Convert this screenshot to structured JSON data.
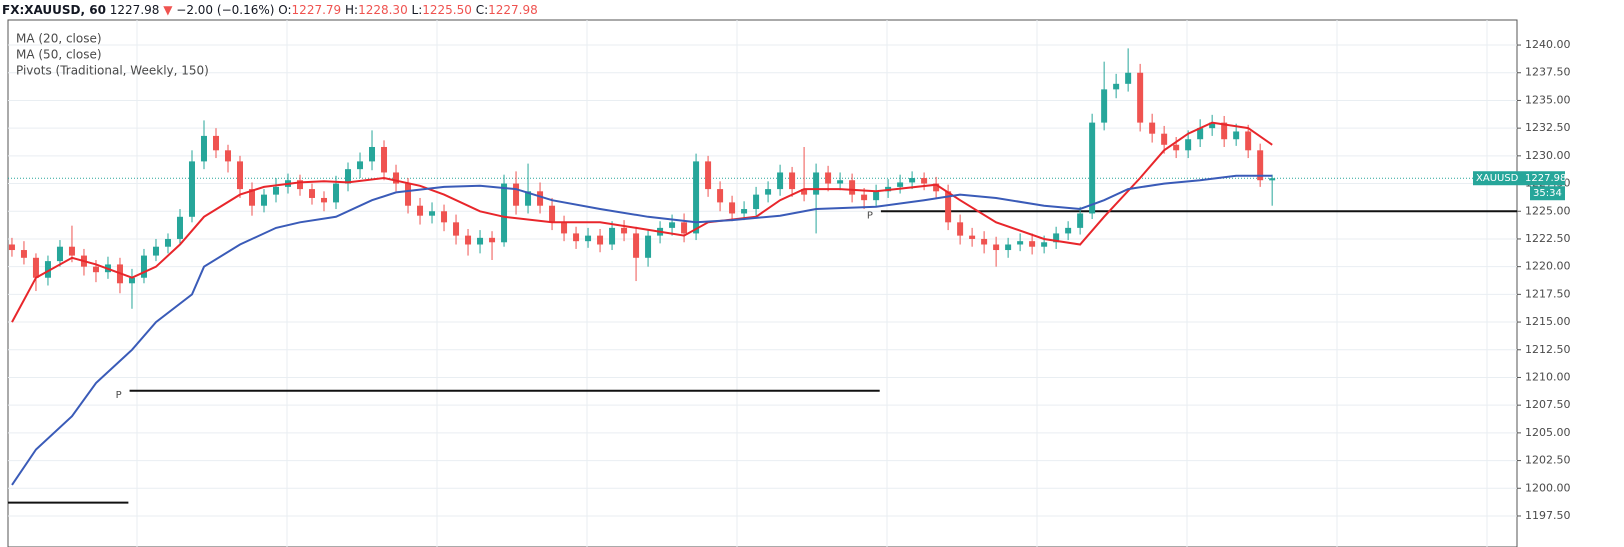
{
  "chart_data": {
    "type": "candlestick",
    "header": {
      "symbol": "FX:XAUUSD, 60",
      "last": "1227.98",
      "direction": "▼",
      "change": "−2.00 (−0.16%)",
      "ohlc": [
        {
          "key": "O:",
          "value": "1227.79"
        },
        {
          "key": "H:",
          "value": "1228.30"
        },
        {
          "key": "L:",
          "value": "1225.50"
        },
        {
          "key": "C:",
          "value": "1227.98"
        }
      ]
    },
    "up_color": "#26a69a",
    "down_color": "#ef5350",
    "xlim": [
      -0.33,
      125.4
    ],
    "ylim": [
      1194.7,
      1242.26
    ],
    "yticks": [
      {
        "value": 1197.5,
        "label": "1197.50"
      },
      {
        "value": 1200,
        "label": "1200.00"
      },
      {
        "value": 1202.5,
        "label": "1202.50"
      },
      {
        "value": 1205,
        "label": "1205.00"
      },
      {
        "value": 1207.5,
        "label": "1207.50"
      },
      {
        "value": 1210,
        "label": "1210.00"
      },
      {
        "value": 1212.5,
        "label": "1212.50"
      },
      {
        "value": 1215,
        "label": "1215.00"
      },
      {
        "value": 1217.5,
        "label": "1217.50"
      },
      {
        "value": 1220,
        "label": "1220.00"
      },
      {
        "value": 1222.5,
        "label": "1222.50"
      },
      {
        "value": 1225,
        "label": "1225.00"
      },
      {
        "value": 1227.5,
        "label": "1227.50"
      },
      {
        "value": 1230,
        "label": "1230.00"
      },
      {
        "value": 1232.5,
        "label": "1232.50"
      },
      {
        "value": 1235,
        "label": "1235.00"
      },
      {
        "value": 1237.5,
        "label": "1237.50"
      },
      {
        "value": 1240,
        "label": "1240.00"
      }
    ],
    "grid": true,
    "open": [
      1222.0,
      1221.5,
      1220.8,
      1219.0,
      1220.5,
      1221.8,
      1221.0,
      1220.0,
      1219.5,
      1220.2,
      1218.5,
      1219.0,
      1221.0,
      1221.8,
      1222.5,
      1224.5,
      1229.5,
      1231.8,
      1230.5,
      1229.5,
      1227.0,
      1225.5,
      1226.5,
      1227.2,
      1227.8,
      1227.0,
      1226.2,
      1225.8,
      1227.5,
      1228.8,
      1229.5,
      1230.8,
      1228.5,
      1227.5,
      1225.5,
      1224.6,
      1225.0,
      1224.0,
      1222.8,
      1222.0,
      1222.6,
      1222.2,
      1227.5,
      1225.5,
      1226.8,
      1225.5,
      1224.0,
      1223.0,
      1222.3,
      1222.8,
      1222.0,
      1223.5,
      1223.0,
      1220.8,
      1222.8,
      1223.5,
      1224.0,
      1223.0,
      1229.5,
      1227.0,
      1225.8,
      1224.8,
      1225.2,
      1226.5,
      1227.0,
      1228.5,
      1227.0,
      1226.5,
      1228.5,
      1227.5,
      1227.8,
      1226.5,
      1226.0,
      1226.8,
      1227.2,
      1227.6,
      1228.0,
      1227.5,
      1226.8,
      1224.0,
      1222.8,
      1222.5,
      1222.0,
      1221.5,
      1222.0,
      1222.3,
      1221.8,
      1222.2,
      1223.0,
      1223.5,
      1224.8,
      1233.0,
      1236.0,
      1236.5,
      1237.5,
      1233.0,
      1232.0,
      1231.0,
      1230.5,
      1231.5,
      1232.5,
      1233.0,
      1231.5,
      1232.2,
      1230.5,
      1227.79
    ],
    "high": [
      1222.6,
      1222.3,
      1221.2,
      1221.0,
      1222.4,
      1223.7,
      1221.6,
      1220.6,
      1220.9,
      1220.8,
      1219.8,
      1221.6,
      1222.5,
      1223.0,
      1225.2,
      1230.5,
      1233.2,
      1232.5,
      1231.0,
      1230.0,
      1227.6,
      1227.0,
      1228.0,
      1228.4,
      1228.3,
      1227.5,
      1226.8,
      1228.2,
      1229.4,
      1230.3,
      1232.3,
      1231.4,
      1229.2,
      1228.0,
      1226.2,
      1225.8,
      1225.6,
      1224.7,
      1223.4,
      1223.3,
      1223.2,
      1228.3,
      1228.6,
      1229.3,
      1227.6,
      1226.2,
      1224.6,
      1223.6,
      1223.5,
      1223.4,
      1224.1,
      1224.2,
      1223.6,
      1223.4,
      1224.1,
      1224.7,
      1224.8,
      1230.2,
      1230.0,
      1227.7,
      1226.4,
      1225.9,
      1227.2,
      1227.7,
      1229.2,
      1229.0,
      1230.8,
      1229.3,
      1229.1,
      1228.5,
      1228.4,
      1227.1,
      1227.4,
      1227.9,
      1228.3,
      1228.6,
      1228.5,
      1228.1,
      1227.4,
      1224.7,
      1223.5,
      1223.2,
      1222.7,
      1222.6,
      1223.0,
      1223.0,
      1222.8,
      1223.6,
      1224.1,
      1225.4,
      1233.8,
      1238.5,
      1237.4,
      1239.7,
      1238.3,
      1233.8,
      1232.7,
      1231.7,
      1232.3,
      1233.3,
      1233.7,
      1233.6,
      1232.9,
      1232.8,
      1231.1,
      1228.3
    ],
    "low": [
      1220.9,
      1220.2,
      1217.8,
      1218.3,
      1220.0,
      1220.4,
      1219.2,
      1218.6,
      1218.9,
      1217.6,
      1216.2,
      1218.5,
      1220.5,
      1221.2,
      1222.0,
      1224.0,
      1228.8,
      1229.8,
      1228.5,
      1226.2,
      1224.6,
      1224.9,
      1225.8,
      1226.6,
      1226.4,
      1225.6,
      1225.0,
      1225.2,
      1226.8,
      1228.0,
      1228.7,
      1227.8,
      1226.8,
      1224.8,
      1223.8,
      1223.9,
      1223.2,
      1222.0,
      1221.0,
      1221.2,
      1220.6,
      1221.8,
      1224.7,
      1224.8,
      1224.8,
      1223.3,
      1222.3,
      1221.6,
      1221.7,
      1221.3,
      1221.5,
      1222.3,
      1218.7,
      1220.0,
      1222.1,
      1222.8,
      1222.2,
      1222.4,
      1226.3,
      1225.0,
      1224.1,
      1224.2,
      1224.6,
      1225.8,
      1226.4,
      1226.3,
      1225.9,
      1223.0,
      1226.8,
      1226.9,
      1225.8,
      1225.2,
      1225.4,
      1226.2,
      1226.6,
      1227.0,
      1226.9,
      1226.1,
      1223.3,
      1222.0,
      1221.8,
      1221.2,
      1220.0,
      1220.8,
      1221.4,
      1221.1,
      1221.2,
      1221.6,
      1222.4,
      1222.9,
      1224.3,
      1232.3,
      1235.2,
      1235.8,
      1232.2,
      1231.2,
      1230.2,
      1229.8,
      1229.8,
      1230.8,
      1231.8,
      1230.8,
      1230.9,
      1229.8,
      1227.2,
      1225.5
    ],
    "close": [
      1221.5,
      1220.8,
      1219.0,
      1220.5,
      1221.8,
      1221.0,
      1220.0,
      1219.5,
      1220.2,
      1218.5,
      1219.0,
      1221.0,
      1221.8,
      1222.5,
      1224.5,
      1229.5,
      1231.8,
      1230.5,
      1229.5,
      1227.0,
      1225.5,
      1226.5,
      1227.2,
      1227.8,
      1227.0,
      1226.2,
      1225.8,
      1227.5,
      1228.8,
      1229.5,
      1230.8,
      1228.5,
      1227.5,
      1225.5,
      1224.6,
      1225.0,
      1224.0,
      1222.8,
      1222.0,
      1222.6,
      1222.2,
      1227.5,
      1225.5,
      1226.8,
      1225.5,
      1224.0,
      1223.0,
      1222.3,
      1222.8,
      1222.0,
      1223.5,
      1223.0,
      1220.8,
      1222.8,
      1223.5,
      1224.0,
      1223.0,
      1229.5,
      1227.0,
      1225.8,
      1224.8,
      1225.2,
      1226.5,
      1227.0,
      1228.5,
      1227.0,
      1226.5,
      1228.5,
      1227.5,
      1227.8,
      1226.5,
      1226.0,
      1226.8,
      1227.2,
      1227.6,
      1228.0,
      1227.5,
      1226.8,
      1224.0,
      1222.8,
      1222.5,
      1222.0,
      1221.5,
      1222.0,
      1222.3,
      1221.8,
      1222.2,
      1223.0,
      1223.5,
      1224.8,
      1233.0,
      1236.0,
      1236.5,
      1237.5,
      1233.0,
      1232.0,
      1231.0,
      1230.5,
      1231.5,
      1232.5,
      1233.0,
      1231.5,
      1232.2,
      1230.5,
      1227.8,
      1227.98
    ],
    "series": [
      {
        "name": "MA (20, close)",
        "color": "#e8262b",
        "x": [
          0,
          2,
          5,
          7,
          10,
          12,
          14,
          16,
          19,
          21,
          24,
          26,
          28,
          31,
          34,
          36,
          39,
          41,
          45,
          49,
          52,
          56,
          58,
          62,
          64,
          66,
          69,
          72,
          77,
          79,
          82,
          86,
          89,
          91,
          94,
          96,
          98,
          100,
          103,
          105
        ],
        "values": [
          1215,
          1219,
          1220.8,
          1220.2,
          1219,
          1220,
          1222,
          1224.5,
          1226.5,
          1227.2,
          1227.6,
          1227.7,
          1227.6,
          1228,
          1227.3,
          1226.5,
          1225,
          1224.5,
          1224,
          1224,
          1223.5,
          1222.8,
          1224,
          1224.5,
          1226,
          1227,
          1227,
          1226.8,
          1227.4,
          1226,
          1224,
          1222.5,
          1222,
          1224.5,
          1228,
          1230.5,
          1232,
          1233,
          1232.5,
          1231
        ]
      },
      {
        "name": "MA (50, close)",
        "color": "#3a5bb8",
        "x": [
          0,
          2,
          5,
          7,
          10,
          12,
          15,
          16,
          19,
          22,
          24,
          27,
          30,
          32,
          36,
          39,
          42,
          45,
          49,
          53,
          57,
          60,
          64,
          67,
          72,
          76,
          79,
          82,
          86,
          89,
          91,
          93,
          96,
          99,
          102,
          105
        ],
        "values": [
          1200.3,
          1203.5,
          1206.5,
          1209.5,
          1212.5,
          1215,
          1217.5,
          1220,
          1222,
          1223.5,
          1224,
          1224.5,
          1226,
          1226.7,
          1227.2,
          1227.3,
          1227,
          1226,
          1225.2,
          1224.5,
          1224,
          1224.2,
          1224.6,
          1225.2,
          1225.4,
          1226,
          1226.5,
          1226.2,
          1225.5,
          1225.2,
          1226,
          1227,
          1227.5,
          1227.8,
          1228.2,
          1228.2
        ]
      }
    ],
    "pivots_name": "Pivots (Traditional, Weekly, 150)",
    "pivots": [
      {
        "value": 1198.7,
        "start": -0.33,
        "end": 9.7
      },
      {
        "value": 1208.8,
        "start": 9.8,
        "end": 72.3,
        "label": "P"
      },
      {
        "value": 1225.0,
        "start": 72.4,
        "end": 125.4,
        "label": "P"
      }
    ],
    "price_line_color": "#26a69a",
    "symbol_label": "XAUUSD",
    "last_price": {
      "value": 1227.98,
      "label": "1227.98"
    },
    "countdown": "35:34"
  }
}
